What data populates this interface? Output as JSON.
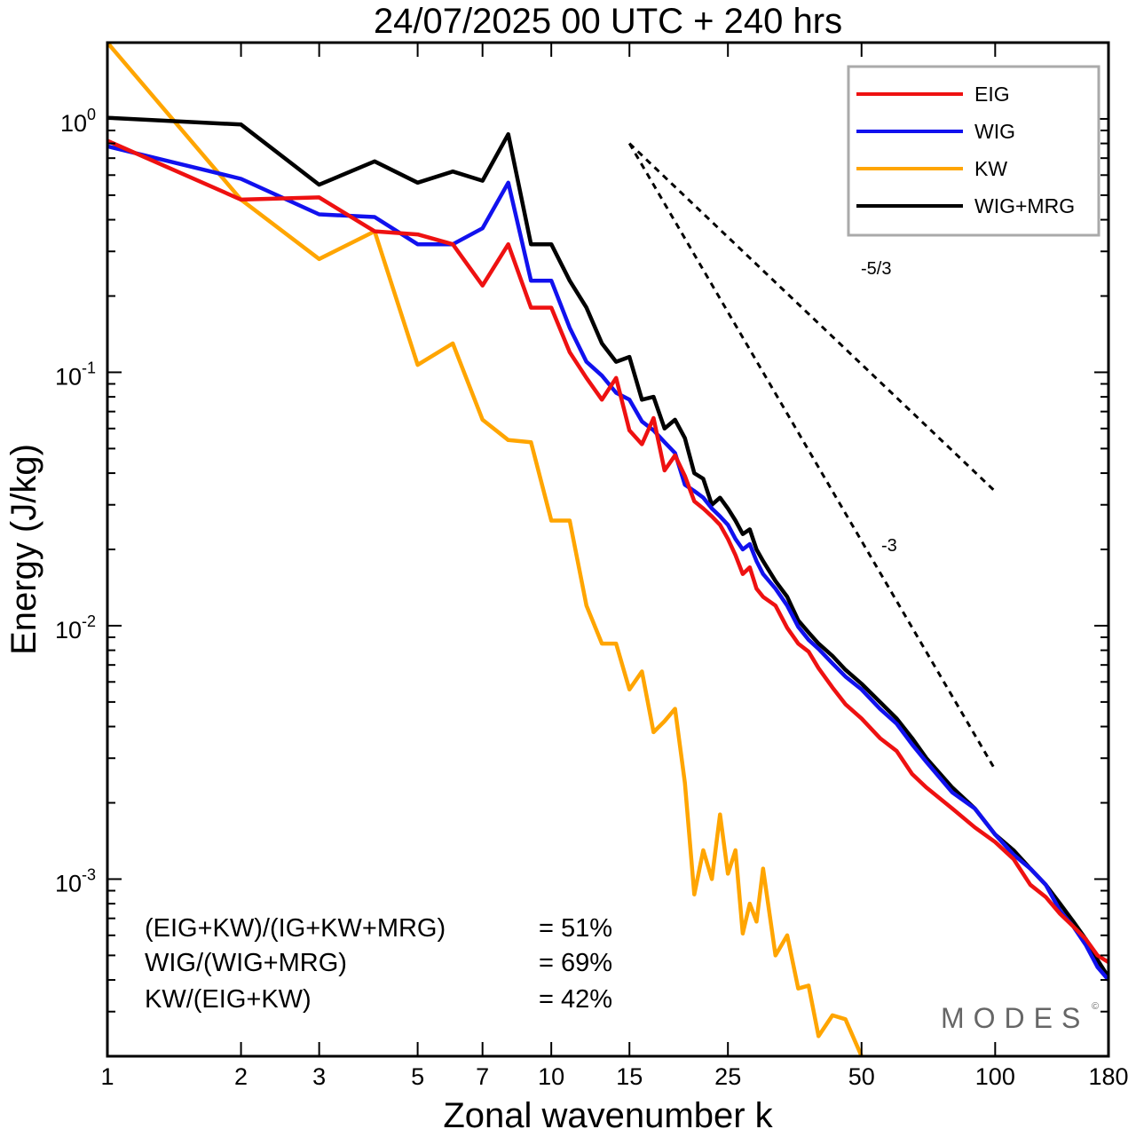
{
  "chart_data": {
    "type": "line",
    "title": "24/07/2025  00 UTC  + 240 hrs",
    "xlabel": "Zonal wavenumber k",
    "ylabel": "Energy (J/kg)",
    "xscale": "log",
    "yscale": "log",
    "xlim": [
      1,
      180
    ],
    "ylim": [
      0.0002,
      2.0
    ],
    "x_ticks": [
      1,
      2,
      3,
      5,
      7,
      10,
      15,
      25,
      50,
      100,
      180
    ],
    "x_tick_labels": [
      "1",
      "2",
      "3",
      "5",
      "7",
      "10",
      "15",
      "25",
      "50",
      "100",
      "180"
    ],
    "y_ticks": [
      {
        "value": 1,
        "base": "10",
        "exp": "0"
      },
      {
        "value": 0.1,
        "base": "10",
        "exp": "-1"
      },
      {
        "value": 0.01,
        "base": "10",
        "exp": "-2"
      },
      {
        "value": 0.001,
        "base": "10",
        "exp": "-3"
      }
    ],
    "legend": "top-right",
    "series": [
      {
        "name": "EIG",
        "color": "#ee1111",
        "x": [
          1,
          2,
          3,
          4,
          5,
          6,
          7,
          8,
          9,
          10,
          11,
          12,
          13,
          14,
          15,
          16,
          17,
          18,
          19,
          20,
          21,
          22,
          23,
          24,
          25,
          26,
          27,
          28,
          29,
          30,
          32,
          34,
          36,
          38,
          40,
          43,
          46,
          50,
          55,
          60,
          65,
          70,
          80,
          90,
          100,
          110,
          120,
          130,
          140,
          150,
          160,
          170,
          180
        ],
        "y": [
          0.82,
          0.48,
          0.49,
          0.36,
          0.35,
          0.32,
          0.22,
          0.32,
          0.18,
          0.18,
          0.12,
          0.095,
          0.078,
          0.095,
          0.059,
          0.052,
          0.066,
          0.041,
          0.047,
          0.039,
          0.031,
          0.029,
          0.027,
          0.025,
          0.022,
          0.019,
          0.016,
          0.017,
          0.014,
          0.013,
          0.012,
          0.0098,
          0.0085,
          0.0079,
          0.0068,
          0.0057,
          0.0049,
          0.0043,
          0.0036,
          0.0032,
          0.0026,
          0.0023,
          0.0019,
          0.0016,
          0.0014,
          0.0012,
          0.00095,
          0.00085,
          0.00073,
          0.00065,
          0.00058,
          0.0005,
          0.00047
        ]
      },
      {
        "name": "WIG",
        "color": "#1111ee",
        "x": [
          1,
          2,
          3,
          4,
          5,
          6,
          7,
          8,
          9,
          10,
          11,
          12,
          13,
          14,
          15,
          16,
          17,
          18,
          19,
          20,
          21,
          22,
          23,
          24,
          25,
          26,
          27,
          28,
          29,
          30,
          32,
          34,
          36,
          38,
          40,
          43,
          46,
          50,
          55,
          60,
          65,
          70,
          80,
          90,
          100,
          110,
          120,
          130,
          140,
          150,
          160,
          170,
          180
        ],
        "y": [
          0.78,
          0.58,
          0.42,
          0.41,
          0.32,
          0.32,
          0.37,
          0.56,
          0.23,
          0.23,
          0.15,
          0.11,
          0.097,
          0.083,
          0.078,
          0.064,
          0.059,
          0.053,
          0.048,
          0.036,
          0.034,
          0.032,
          0.029,
          0.027,
          0.025,
          0.022,
          0.02,
          0.021,
          0.018,
          0.016,
          0.014,
          0.012,
          0.0099,
          0.0088,
          0.0081,
          0.0071,
          0.0063,
          0.0056,
          0.0047,
          0.0041,
          0.0034,
          0.0029,
          0.0022,
          0.0019,
          0.0015,
          0.00125,
          0.0011,
          0.00095,
          0.00075,
          0.00065,
          0.00055,
          0.00045,
          0.0004
        ]
      },
      {
        "name": "KW",
        "color": "#ffa500",
        "x": [
          1,
          2,
          3,
          4,
          5,
          6,
          7,
          8,
          9,
          10,
          11,
          12,
          13,
          14,
          15,
          16,
          17,
          18,
          19,
          20,
          21,
          22,
          23,
          24,
          25,
          26,
          27,
          28,
          29,
          30,
          32,
          34,
          36,
          38,
          40,
          43,
          46,
          50
        ],
        "y": [
          2.0,
          0.48,
          0.28,
          0.36,
          0.107,
          0.13,
          0.065,
          0.054,
          0.053,
          0.026,
          0.026,
          0.012,
          0.0085,
          0.0085,
          0.0056,
          0.0066,
          0.0038,
          0.0042,
          0.0047,
          0.0024,
          0.00087,
          0.0013,
          0.001,
          0.0018,
          0.00105,
          0.0013,
          0.00061,
          0.0008,
          0.00068,
          0.0011,
          0.0005,
          0.0006,
          0.00037,
          0.00038,
          0.00024,
          0.00029,
          0.00028,
          0.0002
        ]
      },
      {
        "name": "WIG+MRG",
        "color": "#000000",
        "x": [
          1,
          2,
          3,
          4,
          5,
          6,
          7,
          8,
          9,
          10,
          11,
          12,
          13,
          14,
          15,
          16,
          17,
          18,
          19,
          20,
          21,
          22,
          23,
          24,
          25,
          26,
          27,
          28,
          29,
          30,
          32,
          34,
          36,
          38,
          40,
          43,
          46,
          50,
          55,
          60,
          65,
          70,
          80,
          90,
          100,
          110,
          120,
          130,
          140,
          150,
          160,
          170,
          180
        ],
        "y": [
          1.01,
          0.95,
          0.55,
          0.68,
          0.56,
          0.62,
          0.57,
          0.87,
          0.32,
          0.32,
          0.23,
          0.18,
          0.13,
          0.11,
          0.115,
          0.078,
          0.08,
          0.06,
          0.065,
          0.055,
          0.04,
          0.038,
          0.03,
          0.032,
          0.029,
          0.026,
          0.023,
          0.024,
          0.02,
          0.018,
          0.015,
          0.013,
          0.0105,
          0.0094,
          0.0085,
          0.0076,
          0.0067,
          0.0059,
          0.005,
          0.0043,
          0.0036,
          0.003,
          0.0023,
          0.0019,
          0.0015,
          0.0013,
          0.0011,
          0.00095,
          0.0008,
          0.00068,
          0.00058,
          0.00048,
          0.00041
        ]
      }
    ],
    "reference_lines": [
      {
        "label": "-5/3",
        "slope": -1.6667,
        "x": [
          15,
          100
        ],
        "y0": 0.8
      },
      {
        "label": "-3",
        "slope": -3,
        "x": [
          15,
          100
        ],
        "y0": 0.8
      }
    ],
    "annotations": {
      "ratios": [
        {
          "label": "(EIG+KW)/(IG+KW+MRG)",
          "value": "= 51%"
        },
        {
          "label": "WIG/(WIG+MRG)",
          "value": "= 69%"
        },
        {
          "label": "KW/(EIG+KW)",
          "value": "= 42%"
        }
      ],
      "watermark": "MODES"
    }
  }
}
